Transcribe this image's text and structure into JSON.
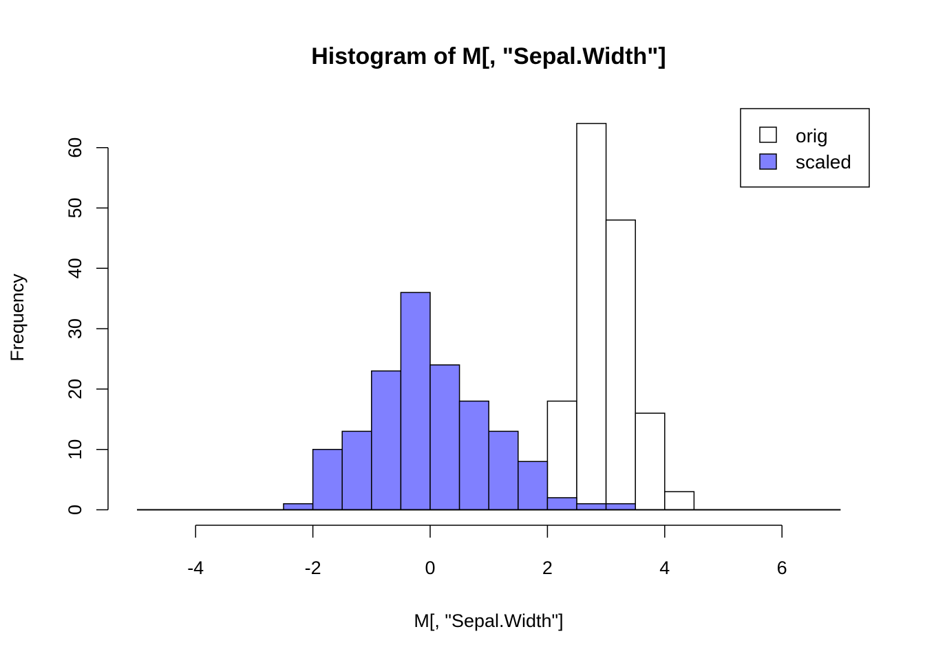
{
  "chart_data": {
    "type": "bar",
    "title": "Histogram of M[, \"Sepal.Width\"]",
    "xlabel": "M[, \"Sepal.Width\"]",
    "ylabel": "Frequency",
    "xlim": [
      -5,
      7
    ],
    "ylim": [
      0,
      64
    ],
    "x_ticks": [
      -4,
      -2,
      0,
      2,
      4,
      6
    ],
    "y_ticks": [
      0,
      10,
      20,
      30,
      40,
      50,
      60
    ],
    "bin_width": 0.5,
    "grid": false,
    "legend_position": "top-right",
    "colors": {
      "orig": "#ffffff",
      "scaled": "#8080ff",
      "stroke": "#000000"
    },
    "series": [
      {
        "name": "orig",
        "bin_starts": [
          1.5,
          2.0,
          2.5,
          3.0,
          3.5,
          4.0
        ],
        "values": [
          1,
          18,
          64,
          48,
          16,
          3
        ]
      },
      {
        "name": "scaled",
        "bin_starts": [
          -2.5,
          -2.0,
          -1.5,
          -1.0,
          -0.5,
          0.0,
          0.5,
          1.0,
          1.5,
          2.0,
          2.5,
          3.0
        ],
        "values": [
          1,
          10,
          13,
          23,
          36,
          24,
          18,
          13,
          8,
          2,
          1,
          1
        ]
      }
    ]
  }
}
